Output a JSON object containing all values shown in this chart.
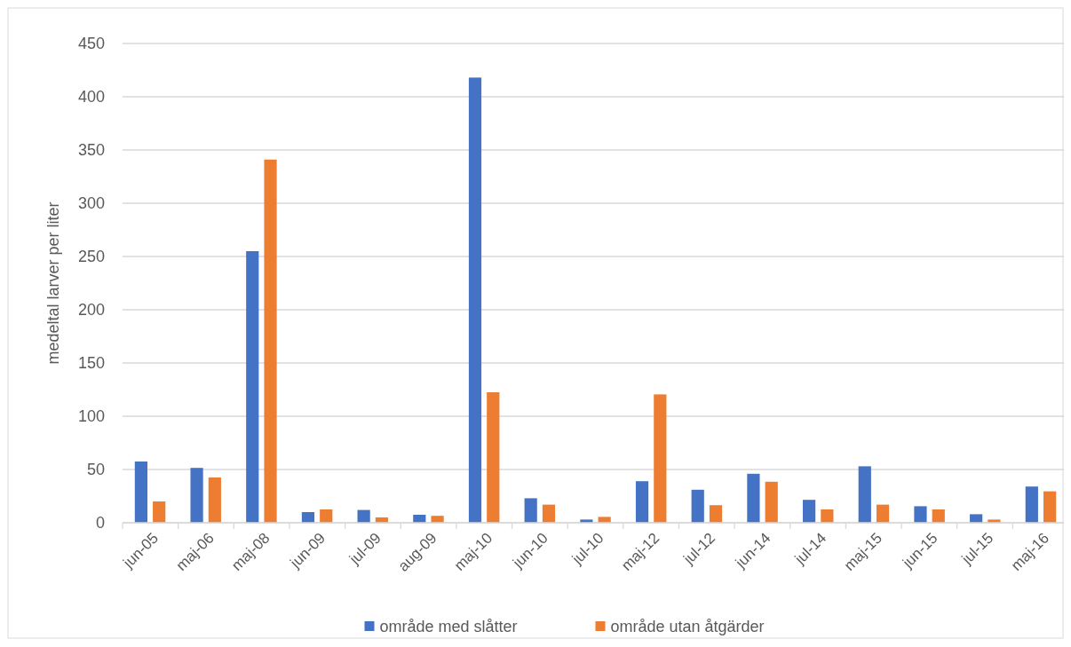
{
  "chart_data": {
    "type": "bar",
    "ylabel": "medeltal larver per liter",
    "categories": [
      "jun-05",
      "maj-06",
      "maj-08",
      "jun-09",
      "jul-09",
      "aug-09",
      "maj-10",
      "jun-10",
      "jul-10",
      "maj-12",
      "jul-12",
      "jun-14",
      "jul-14",
      "maj-15",
      "jun-15",
      "jul-15",
      "maj-16"
    ],
    "series": [
      {
        "name": "område med slåtter",
        "color": "#4472c4",
        "values": [
          57.5,
          51.5,
          255,
          10,
          12,
          7.5,
          418,
          23,
          3,
          39,
          31,
          46,
          21.5,
          53,
          15.5,
          8,
          34
        ]
      },
      {
        "name": "område utan åtgärder",
        "color": "#ed7d31",
        "values": [
          20,
          42.5,
          341,
          12.5,
          5,
          6.5,
          122.5,
          17,
          5.5,
          120.5,
          16.5,
          38.5,
          12.5,
          17,
          12.5,
          3,
          29.5
        ]
      }
    ],
    "ylim": [
      0,
      450
    ],
    "yticks": [
      0,
      50,
      100,
      150,
      200,
      250,
      300,
      350,
      400,
      450
    ],
    "grid": "y",
    "legend": "bottom"
  }
}
